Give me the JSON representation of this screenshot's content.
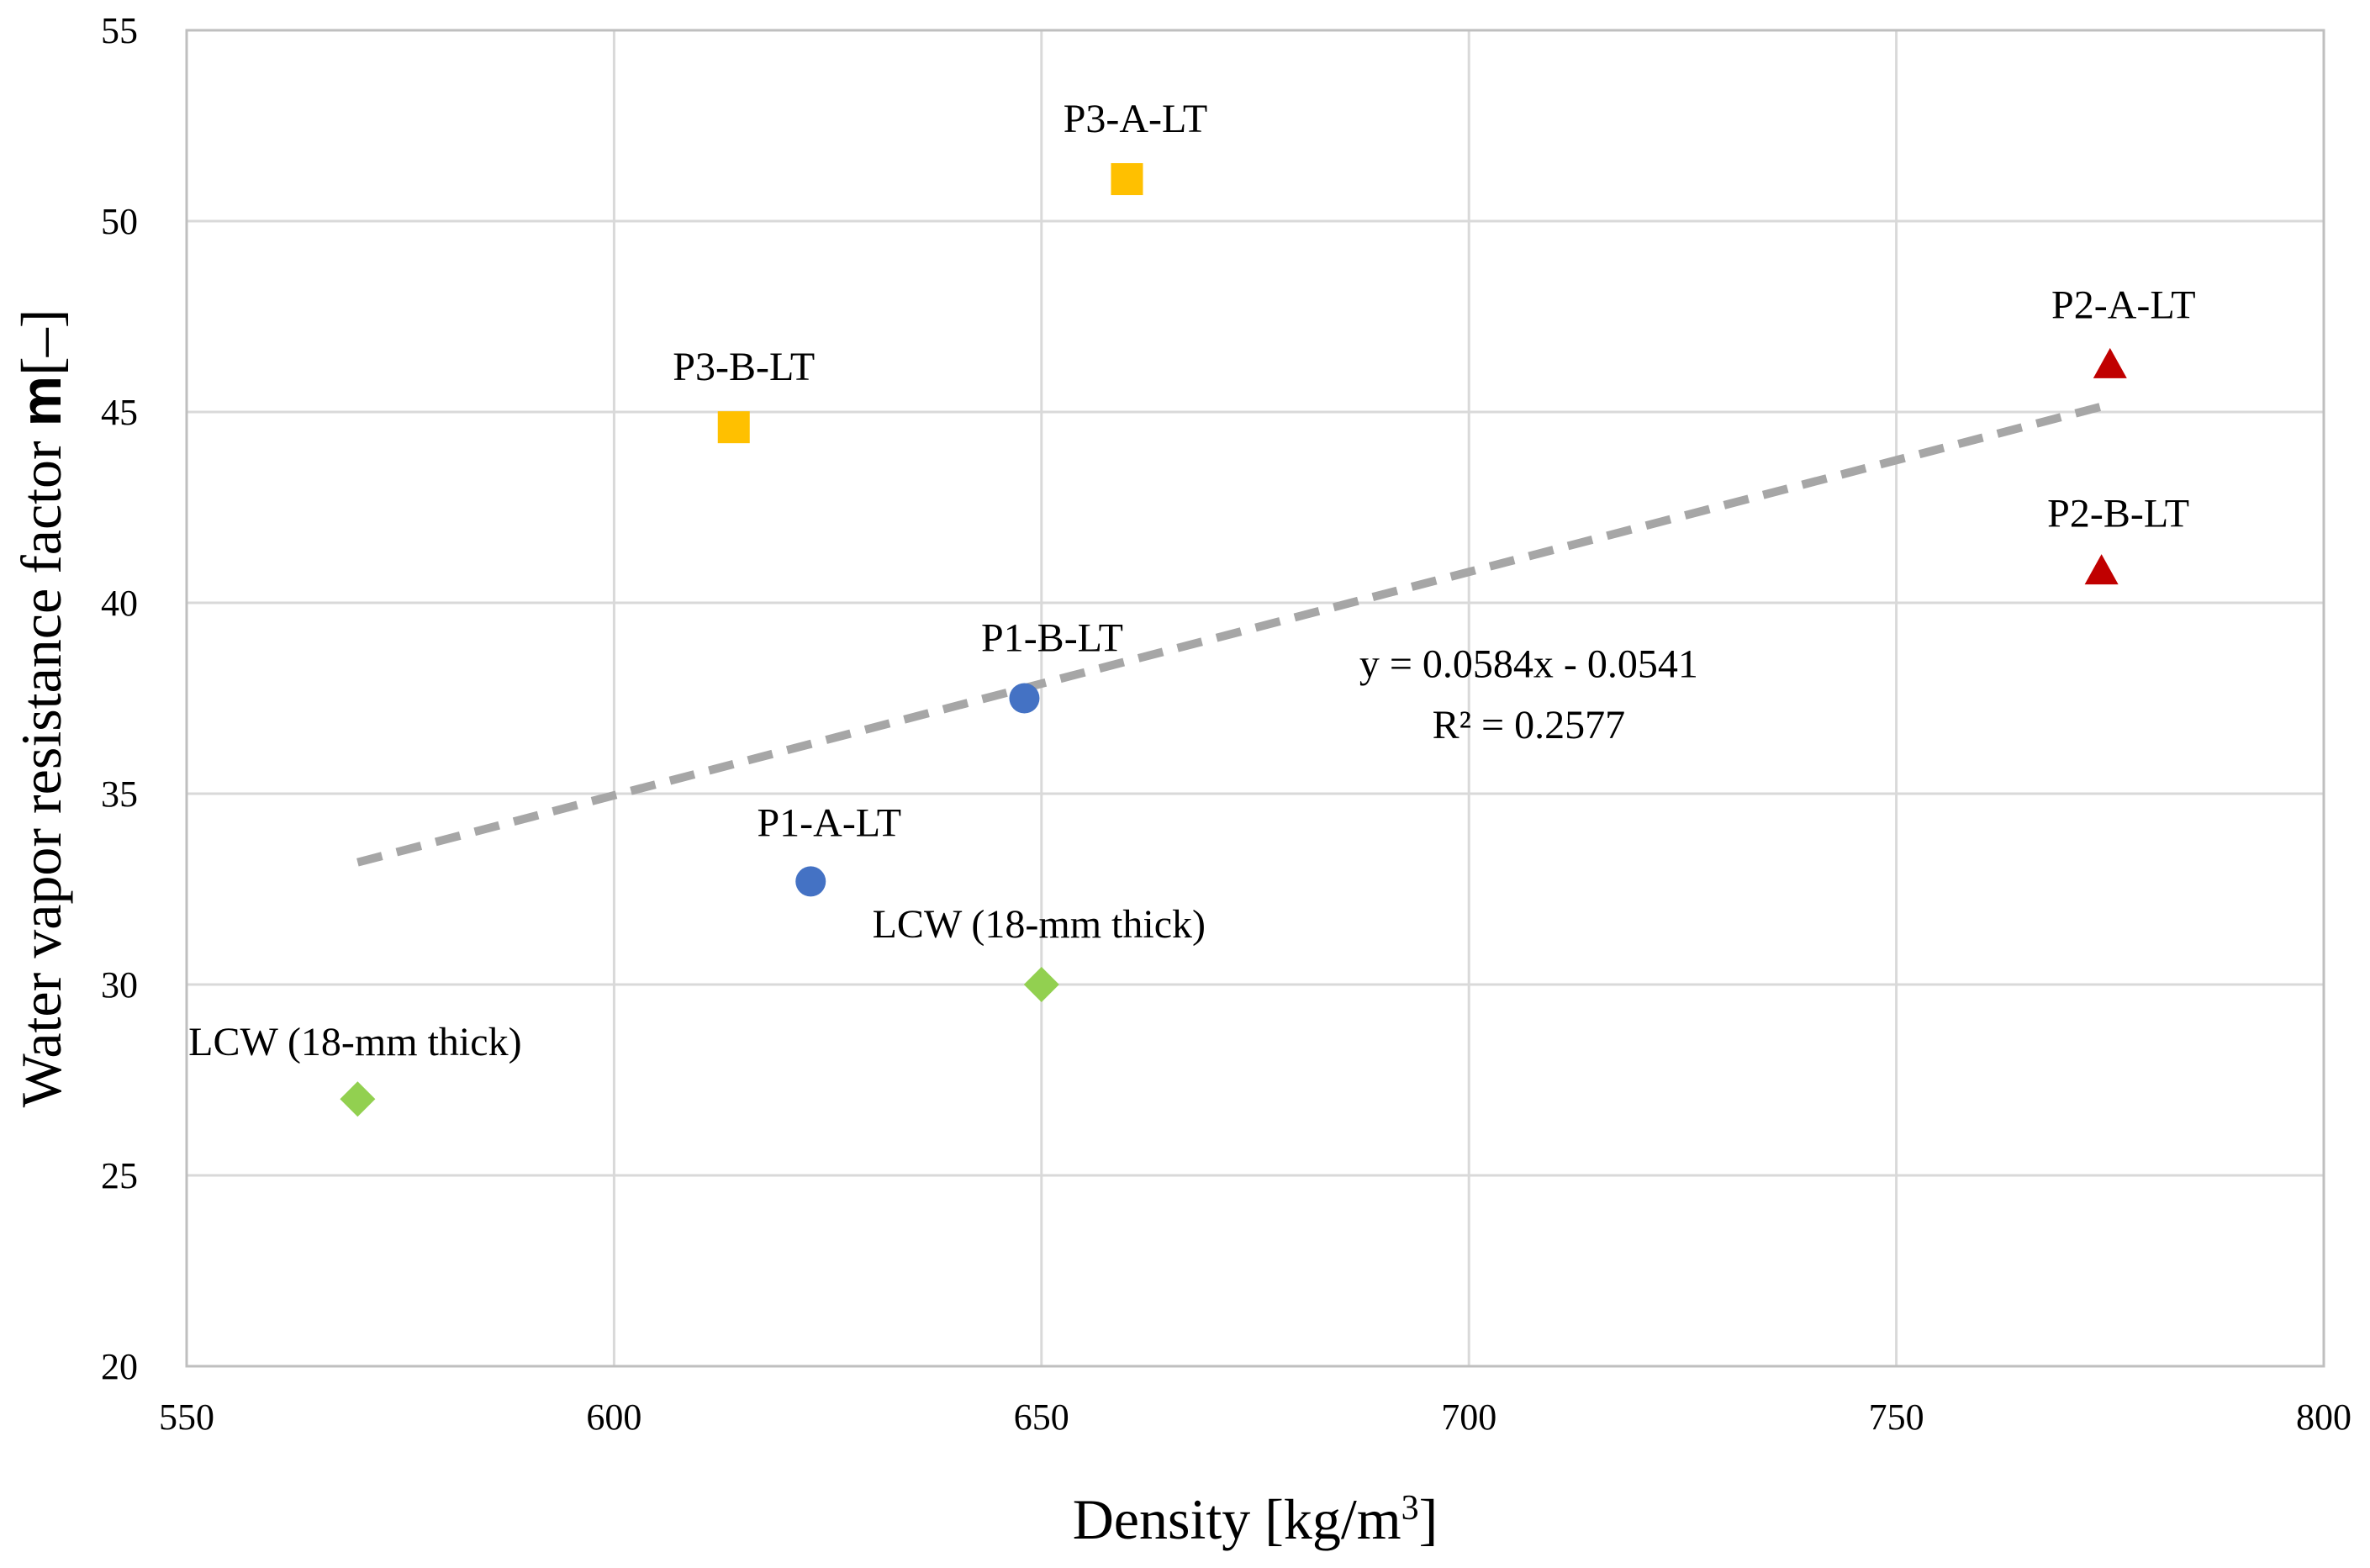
{
  "chart_data": {
    "type": "scatter",
    "title": "",
    "xlabel": "Density [kg/m",
    "xlabel_sup": "3",
    "xlabel_end": "]",
    "ylabel": "Water vapor resistance factor ",
    "ylabel_symbol": "m",
    "ylabel_end": "[–]",
    "xlim": [
      550,
      800
    ],
    "ylim": [
      20,
      55
    ],
    "x_ticks": [
      550,
      600,
      650,
      700,
      750,
      800
    ],
    "y_ticks": [
      20,
      25,
      30,
      35,
      40,
      45,
      50,
      55
    ],
    "grid": true,
    "legend": "none",
    "series": [
      {
        "name": "P1",
        "marker": "circle",
        "color": "#4472C4",
        "points": [
          {
            "x": 623,
            "y": 32.7,
            "label": "P1-A-LT"
          },
          {
            "x": 648,
            "y": 37.5,
            "label": "P1-B-LT"
          }
        ]
      },
      {
        "name": "P2",
        "marker": "triangle",
        "color": "#C00000",
        "points": [
          {
            "x": 775,
            "y": 46.2,
            "label": "P2-A-LT"
          },
          {
            "x": 774,
            "y": 40.8,
            "label": "P2-B-LT"
          }
        ]
      },
      {
        "name": "P3",
        "marker": "square",
        "color": "#FFC000",
        "points": [
          {
            "x": 660,
            "y": 51.1,
            "label": "P3-A-LT"
          },
          {
            "x": 614,
            "y": 44.6,
            "label": "P3-B-LT"
          }
        ]
      },
      {
        "name": "LCW",
        "marker": "diamond",
        "color": "#92D050",
        "points": [
          {
            "x": 650,
            "y": 30.0,
            "label": "LCW (18-mm thick)"
          },
          {
            "x": 570,
            "y": 27.0,
            "label": "LCW (18-mm thick)"
          }
        ]
      }
    ],
    "trendline": {
      "type": "linear",
      "color": "#A6A6A6",
      "dashed": true,
      "x_range": [
        570,
        775
      ],
      "y_range": [
        33.2,
        45.2
      ],
      "equation": "y = 0.0584x - 0.0541",
      "r_squared": "R² = 0.2577"
    }
  }
}
